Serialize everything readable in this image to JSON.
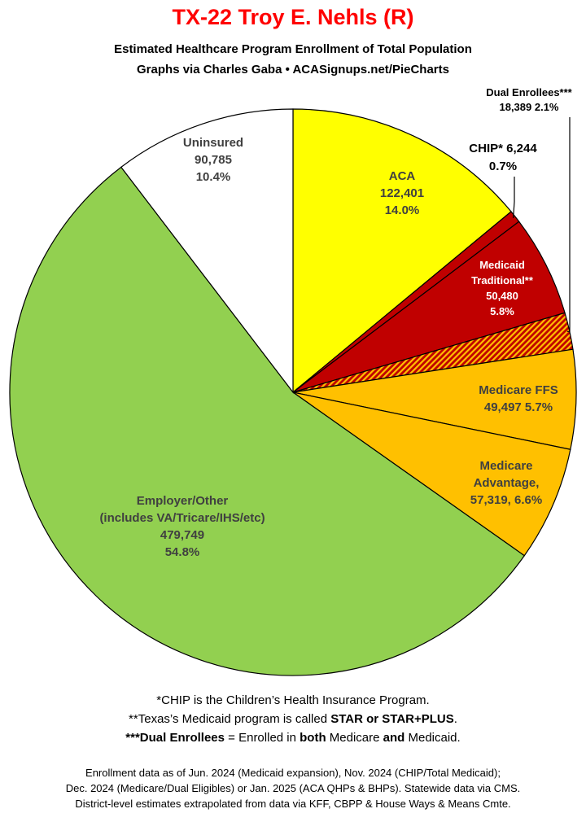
{
  "header": {
    "title": "TX-22 Troy E. Nehls (R)",
    "subtitle1": "Estimated Healthcare Program Enrollment of Total Population",
    "subtitle2": "Graphs via Charles Gaba   •   ACASignups.net/PieCharts"
  },
  "colors": {
    "title": "#ff0000",
    "aca": "#ffff00",
    "chip": "#c00000",
    "medicaid": "#c00000",
    "dual": "#c00000",
    "dual_hatch": "#ffc000",
    "medicare_ffs": "#ffc000",
    "medicare_adv": "#ffc000",
    "employer": "#92d050",
    "uninsured": "#ffffff"
  },
  "chart_data": {
    "type": "pie",
    "title": "TX-22 Troy E. Nehls (R)",
    "start": "12 o'clock, clockwise",
    "slices": [
      {
        "key": "aca",
        "name": "ACA",
        "value": 122401,
        "percent": 14.0,
        "label_lines": [
          "ACA",
          "122,401",
          "14.0%"
        ]
      },
      {
        "key": "chip",
        "name": "CHIP*",
        "value": 6244,
        "percent": 0.7,
        "label_lines": [
          "CHIP* 6,244",
          "0.7%"
        ]
      },
      {
        "key": "medicaid",
        "name": "Medicaid Traditional**",
        "value": 50480,
        "percent": 5.8,
        "label_lines": [
          "Medicaid",
          "Traditional**",
          "50,480",
          "5.8%"
        ]
      },
      {
        "key": "dual",
        "name": "Dual Enrollees***",
        "value": 18389,
        "percent": 2.1,
        "label_lines": [
          "Dual Enrollees***",
          "18,389 2.1%"
        ]
      },
      {
        "key": "medicare_ffs",
        "name": "Medicare FFS",
        "value": 49497,
        "percent": 5.7,
        "label_lines": [
          "Medicare FFS",
          "49,497 5.7%"
        ]
      },
      {
        "key": "medicare_adv",
        "name": "Medicare Advantage",
        "value": 57319,
        "percent": 6.6,
        "label_lines": [
          "Medicare",
          "Advantage,",
          "57,319, 6.6%"
        ]
      },
      {
        "key": "employer",
        "name": "Employer/Other (includes VA/Tricare/IHS/etc)",
        "value": 479749,
        "percent": 54.8,
        "label_lines": [
          "Employer/Other",
          "(includes VA/Tricare/IHS/etc)",
          "479,749",
          "54.8%"
        ]
      },
      {
        "key": "uninsured",
        "name": "Uninsured",
        "value": 90785,
        "percent": 10.4,
        "label_lines": [
          "Uninsured",
          "90,785",
          "10.4%"
        ]
      }
    ]
  },
  "footnotes": {
    "chip_note": "*CHIP is the Children’s Health Insurance Program.",
    "medicaid_note_prefix": "**Texas’s Medicaid program is called ",
    "medicaid_note_bold": "STAR or STAR+PLUS",
    "medicaid_note_suffix": ".",
    "dual_note_bold1": "***Dual Enrollees",
    "dual_note_mid1": " = Enrolled in ",
    "dual_note_bold2": "both",
    "dual_note_mid2": " Medicare ",
    "dual_note_bold3": "and",
    "dual_note_suffix": " Medicaid."
  },
  "source": {
    "line1": "Enrollment data as of Jun. 2024 (Medicaid expansion), Nov. 2024 (CHIP/Total Medicaid);",
    "line2": "Dec. 2024 (Medicare/Dual Eligibles) or Jan. 2025 (ACA QHPs & BHPs). Statewide data via CMS.",
    "line3": "District-level estimates extrapolated from data via KFF, CBPP & House Ways & Means Cmte."
  }
}
